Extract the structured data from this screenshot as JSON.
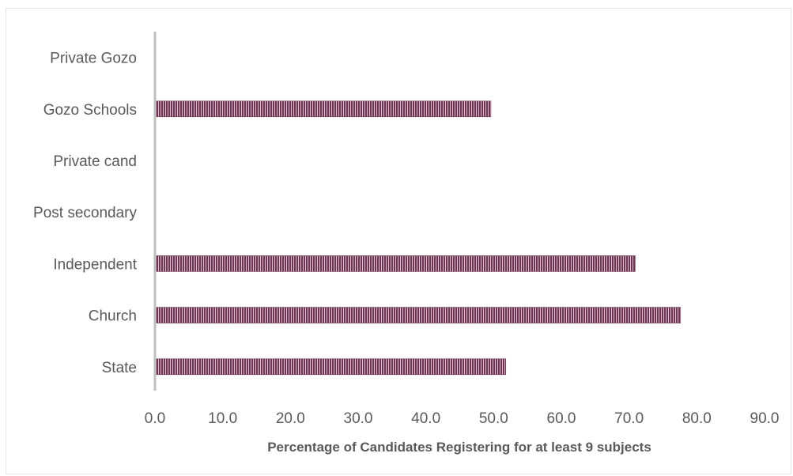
{
  "chart_data": {
    "type": "bar",
    "orientation": "horizontal",
    "categories": [
      "State",
      "Church",
      "Independent",
      "Post secondary",
      "Private cand",
      "Gozo Schools",
      "Private Gozo"
    ],
    "values": [
      51.8,
      77.6,
      70.9,
      null,
      null,
      49.6,
      null
    ],
    "xlabel": "Percentage of Candidates Registering for at least 9 subjects",
    "ylabel": "",
    "xlim": [
      0,
      90
    ],
    "xticks": [
      "0.0",
      "10.0",
      "20.0",
      "30.0",
      "40.0",
      "50.0",
      "60.0",
      "70.0",
      "80.0",
      "90.0"
    ],
    "grid": false,
    "legend": "none",
    "bar_color": "#6e3452",
    "bar_stripe_color": "#d9bfcc"
  }
}
